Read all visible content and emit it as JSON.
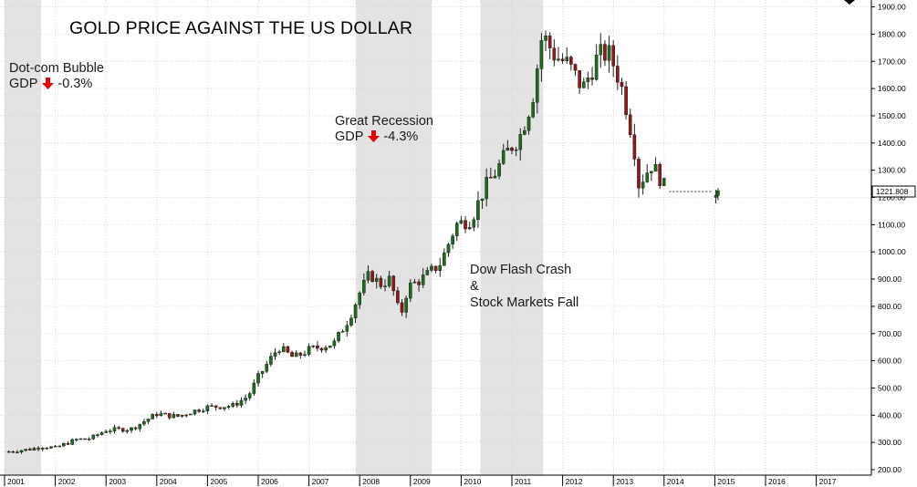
{
  "chart_data": {
    "type": "candlestick",
    "title": "GOLD PRICE AGAINST THE US DOLLAR",
    "xlabel": "",
    "ylabel": "",
    "x_range": [
      2001.0,
      2018.0
    ],
    "ylim": [
      180,
      1920
    ],
    "y_ticks": [
      200,
      300,
      400,
      500,
      600,
      700,
      800,
      900,
      1000,
      1100,
      1200,
      1300,
      1400,
      1500,
      1600,
      1700,
      1800,
      1900
    ],
    "y_tick_labels": [
      "200.00",
      "300.00",
      "400.00",
      "500.00",
      "600.00",
      "700.00",
      "800.00",
      "900.00",
      "1000.00",
      "1100.00",
      "1200.00",
      "1300.00",
      "1400.00",
      "1500.00",
      "1600.00",
      "1700.00",
      "1800.00",
      "1900.00"
    ],
    "x_ticks": [
      2001,
      2002,
      2003,
      2004,
      2005,
      2006,
      2007,
      2008,
      2009,
      2010,
      2011,
      2012,
      2013,
      2014,
      2015,
      2016,
      2017
    ],
    "x_tick_labels": [
      "2001",
      "2002",
      "2003",
      "2004",
      "2005",
      "2006",
      "2007",
      "2008",
      "2009",
      "2010",
      "2011",
      "2012",
      "2013",
      "2014",
      "2015",
      "2016",
      "2017"
    ],
    "grid": true,
    "current_price": 1221.808,
    "current_price_label": "1221.808",
    "colors": {
      "up": "#1e6b1e",
      "down": "#8b1a1a",
      "shade": "#e3e3e3",
      "arrow": "#e00000",
      "grid": "#d6d6d6"
    },
    "shaded_periods": [
      {
        "name": "Dot-com Bubble",
        "start": 2001.0,
        "end": 2001.72
      },
      {
        "name": "Great Recession",
        "start": 2007.92,
        "end": 2009.42
      },
      {
        "name": "Dow Flash Crash",
        "start": 2010.38,
        "end": 2011.62
      }
    ],
    "annotations": {
      "dotcom": {
        "label": "Dot-com Bubble",
        "gdp_label": "GDP",
        "gdp_change": "-0.3%",
        "arrow_icon": "arrow-down-icon"
      },
      "recession": {
        "label": "Great Recession",
        "gdp_label": "GDP",
        "gdp_change": "-4.3%",
        "arrow_icon": "arrow-down-icon"
      },
      "flashcrash": {
        "line1": "Dow Flash Crash",
        "line2": "&",
        "line3": "Stock Markets Fall"
      }
    },
    "anchors": [
      [
        2001.0,
        265
      ],
      [
        2001.5,
        275
      ],
      [
        2001.75,
        285
      ],
      [
        2002.0,
        280
      ],
      [
        2002.4,
        310
      ],
      [
        2002.7,
        315
      ],
      [
        2003.0,
        345
      ],
      [
        2003.5,
        350
      ],
      [
        2004.0,
        405
      ],
      [
        2004.4,
        395
      ],
      [
        2004.8,
        420
      ],
      [
        2005.0,
        430
      ],
      [
        2005.5,
        435
      ],
      [
        2005.8,
        470
      ],
      [
        2006.0,
        540
      ],
      [
        2006.4,
        650
      ],
      [
        2006.7,
        610
      ],
      [
        2007.0,
        640
      ],
      [
        2007.5,
        665
      ],
      [
        2007.8,
        760
      ],
      [
        2008.0,
        850
      ],
      [
        2008.2,
        920
      ],
      [
        2008.4,
        880
      ],
      [
        2008.6,
        900
      ],
      [
        2008.8,
        760
      ],
      [
        2008.95,
        870
      ],
      [
        2009.3,
        910
      ],
      [
        2009.6,
        960
      ],
      [
        2009.9,
        1100
      ],
      [
        2010.2,
        1120
      ],
      [
        2010.45,
        1230
      ],
      [
        2010.7,
        1300
      ],
      [
        2010.95,
        1380
      ],
      [
        2011.15,
        1420
      ],
      [
        2011.4,
        1560
      ],
      [
        2011.6,
        1800
      ],
      [
        2011.85,
        1720
      ],
      [
        2012.1,
        1690
      ],
      [
        2012.4,
        1600
      ],
      [
        2012.7,
        1720
      ],
      [
        2012.9,
        1730
      ],
      [
        2013.05,
        1670
      ],
      [
        2013.2,
        1580
      ],
      [
        2013.4,
        1400
      ],
      [
        2013.5,
        1250
      ],
      [
        2013.75,
        1320
      ],
      [
        2013.9,
        1280
      ],
      [
        2014.0,
        1240
      ],
      [
        2014.08,
        1222
      ]
    ],
    "gap": {
      "start": 2014.1,
      "end": 2014.95,
      "value": 1221.808
    },
    "anchors_after_gap": [
      [
        2014.98,
        1200
      ],
      [
        2015.1,
        1270
      ]
    ]
  }
}
